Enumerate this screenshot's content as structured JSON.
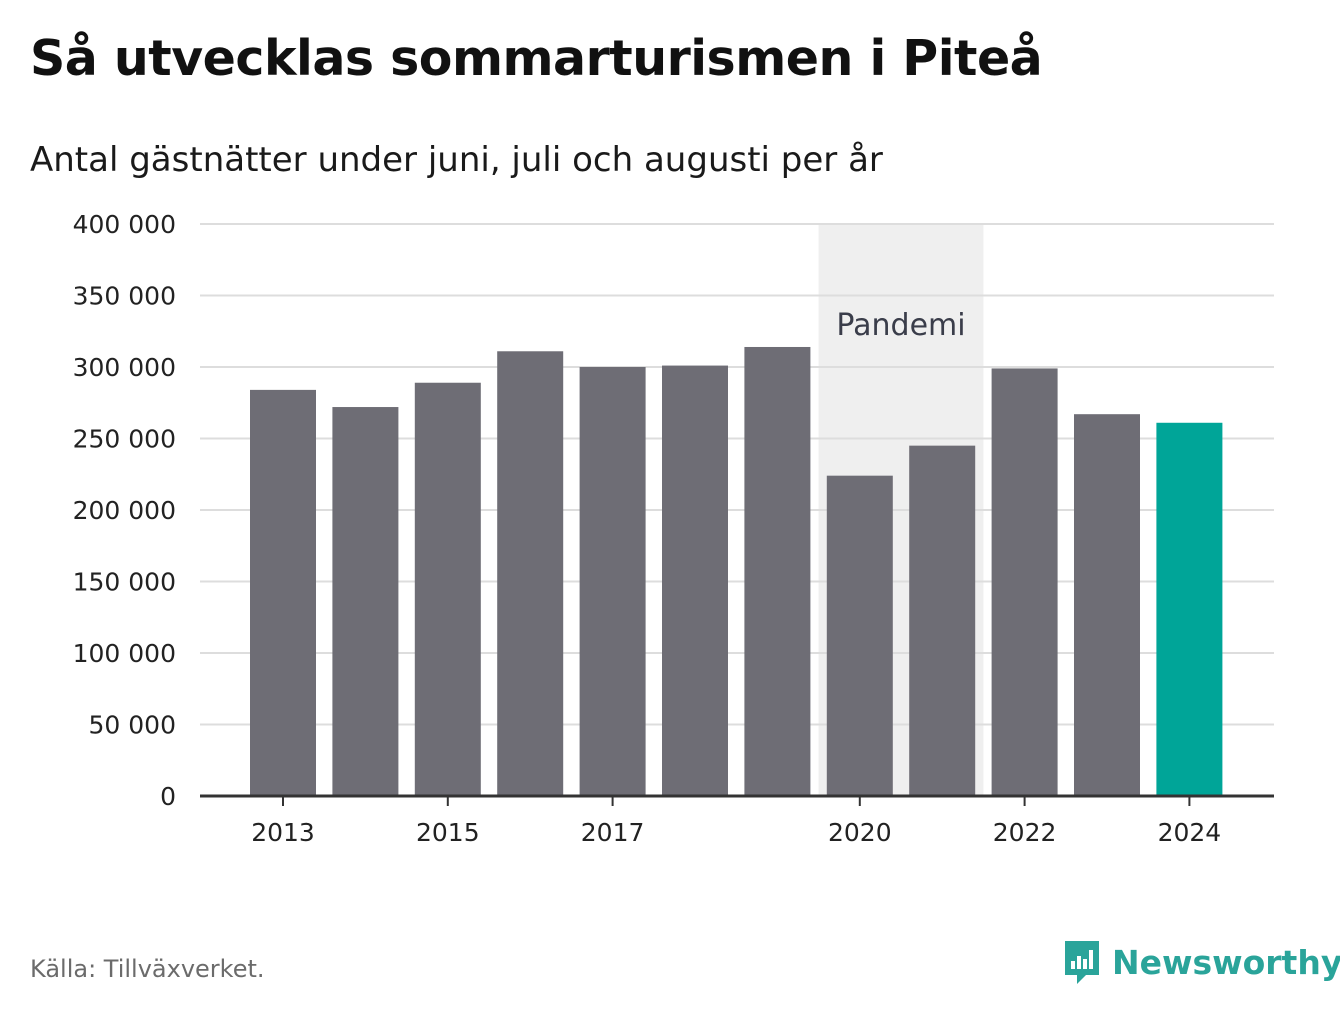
{
  "title": "Så utvecklas sommarturismen i Piteå",
  "subtitle": "Antal gästnätter under juni, juli och augusti per år",
  "source": "Källa: Tillväxverket.",
  "brand": {
    "name": "Newsworthy",
    "logo_icon": "bar-chart-speech-bubble-icon"
  },
  "colors": {
    "bar": "#6e6d75",
    "highlight": "#00a598",
    "band": "#efefef",
    "grid": "#dddddd",
    "axis": "#333333",
    "brand": "#2aa49a"
  },
  "chart_data": {
    "type": "bar",
    "categories": [
      "2013",
      "2014",
      "2015",
      "2016",
      "2017",
      "2018",
      "2019",
      "2020",
      "2021",
      "2022",
      "2023",
      "2024"
    ],
    "values": [
      284000,
      272000,
      289000,
      311000,
      300000,
      301000,
      314000,
      224000,
      245000,
      299000,
      267000,
      261000
    ],
    "highlight_category": "2024",
    "x_tick_labels": [
      "2013",
      "2015",
      "2017",
      "2020",
      "2022",
      "2024"
    ],
    "y_tick_labels": [
      "0",
      "50 000",
      "100 000",
      "150 000",
      "200 000",
      "250 000",
      "300 000",
      "350 000",
      "400 000"
    ],
    "y_ticks": [
      0,
      50000,
      100000,
      150000,
      200000,
      250000,
      300000,
      350000,
      400000
    ],
    "ylim": [
      0,
      400000
    ],
    "grid": true,
    "annotation_band": {
      "label": "Pandemi",
      "from": "2020",
      "to": "2021"
    }
  }
}
